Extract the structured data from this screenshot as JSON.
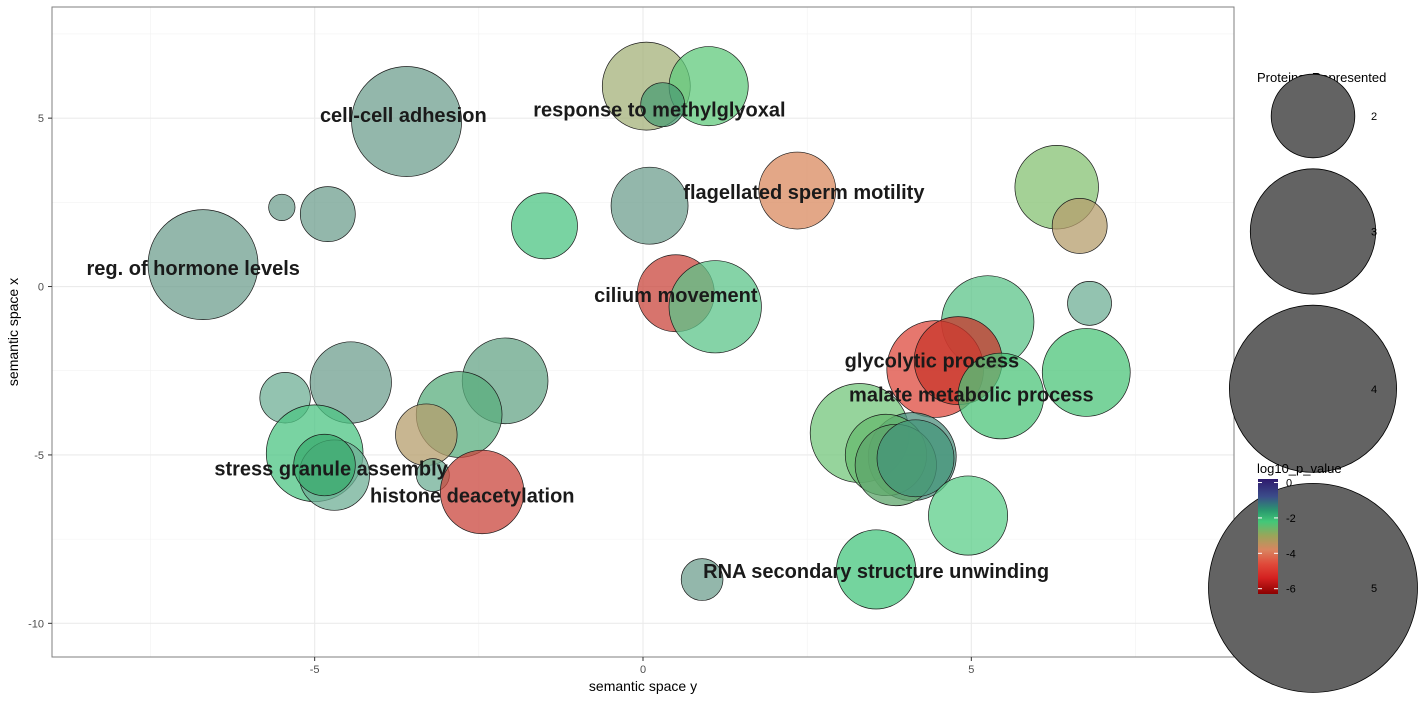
{
  "chart_data": {
    "type": "scatter",
    "subtype": "bubble",
    "xlabel": "semantic space y",
    "ylabel": "semantic space x",
    "xlim": [
      -9,
      9
    ],
    "ylim": [
      -11,
      8.3
    ],
    "x_ticks": [
      -5,
      0,
      5
    ],
    "y_ticks": [
      5,
      0,
      -5,
      -10
    ],
    "x_tick_labels": [
      "-5",
      "0",
      "5"
    ],
    "y_tick_labels": [
      "5",
      "0",
      "-5",
      "-10"
    ],
    "grid": true,
    "size_legend": {
      "title": "Proteins_Represented",
      "entries": [
        {
          "label": "2",
          "value": 2
        },
        {
          "label": "3",
          "value": 3
        },
        {
          "label": "4",
          "value": 4
        },
        {
          "label": "5",
          "value": 5
        }
      ]
    },
    "color_legend": {
      "title": "log10_p_value",
      "ticks": [
        0,
        -2,
        -4,
        -6
      ],
      "tick_labels": [
        "0",
        "-2",
        "-4",
        "-6"
      ],
      "range": [
        -6.3,
        0.2
      ],
      "gradient": [
        {
          "value": 0.2,
          "color": "#2e1a6e"
        },
        {
          "value": -0.8,
          "color": "#3b4d8a"
        },
        {
          "value": -1.6,
          "color": "#2a9a6e"
        },
        {
          "value": -2.2,
          "color": "#42c878"
        },
        {
          "value": -3.0,
          "color": "#9aa55a"
        },
        {
          "value": -3.8,
          "color": "#d98560"
        },
        {
          "value": -4.6,
          "color": "#e04a3a"
        },
        {
          "value": -5.4,
          "color": "#d42020"
        },
        {
          "value": -6.3,
          "color": "#8b0000"
        }
      ]
    },
    "bubbles": [
      {
        "x": -3.6,
        "y": 4.9,
        "size": 5.0,
        "color": "#6f9f8f"
      },
      {
        "x": -6.7,
        "y": 0.65,
        "size": 5.0,
        "color": "#6f9f8f"
      },
      {
        "x": -5.5,
        "y": 2.35,
        "size": 1.2,
        "color": "#6f9f8f"
      },
      {
        "x": -4.8,
        "y": 2.15,
        "size": 2.5,
        "color": "#6f9f8f"
      },
      {
        "x": -1.5,
        "y": 1.8,
        "size": 3.0,
        "color": "#4cc483"
      },
      {
        "x": 0.1,
        "y": 2.4,
        "size": 3.5,
        "color": "#6f9f8f"
      },
      {
        "x": 0.05,
        "y": 5.95,
        "size": 4.0,
        "color": "#a4b27a"
      },
      {
        "x": 1.0,
        "y": 5.95,
        "size": 3.6,
        "color": "#60c97c"
      },
      {
        "x": 0.3,
        "y": 5.4,
        "size": 2.0,
        "color": "#4b9c73"
      },
      {
        "x": 2.35,
        "y": 2.85,
        "size": 3.5,
        "color": "#d98a5f"
      },
      {
        "x": 6.3,
        "y": 2.95,
        "size": 3.8,
        "color": "#85c173"
      },
      {
        "x": 6.65,
        "y": 1.8,
        "size": 2.5,
        "color": "#b69e6c"
      },
      {
        "x": 6.8,
        "y": -0.5,
        "size": 2.0,
        "color": "#6faf95"
      },
      {
        "x": 0.5,
        "y": -0.2,
        "size": 3.5,
        "color": "#c9463c"
      },
      {
        "x": 1.1,
        "y": -0.6,
        "size": 4.2,
        "color": "#5cc48a"
      },
      {
        "x": 5.25,
        "y": -1.05,
        "size": 4.2,
        "color": "#5cc48a"
      },
      {
        "x": 4.45,
        "y": -2.45,
        "size": 4.4,
        "color": "#de4a3e"
      },
      {
        "x": 4.8,
        "y": -2.2,
        "size": 4.0,
        "color": "#c8352b"
      },
      {
        "x": 5.45,
        "y": -3.25,
        "size": 3.9,
        "color": "#4cc479"
      },
      {
        "x": 6.75,
        "y": -2.55,
        "size": 4.0,
        "color": "#4cc479"
      },
      {
        "x": 3.3,
        "y": -4.35,
        "size": 4.5,
        "color": "#73c67b"
      },
      {
        "x": 4.1,
        "y": -5.05,
        "size": 4.0,
        "color": "#4f8f7e"
      },
      {
        "x": 3.7,
        "y": -5.0,
        "size": 3.7,
        "color": "#66b96e"
      },
      {
        "x": 3.85,
        "y": -5.3,
        "size": 3.7,
        "color": "#5da56b"
      },
      {
        "x": 4.15,
        "y": -5.1,
        "size": 3.5,
        "color": "#44957a"
      },
      {
        "x": 4.95,
        "y": -6.8,
        "size": 3.6,
        "color": "#5cce8a"
      },
      {
        "x": 3.55,
        "y": -8.4,
        "size": 3.6,
        "color": "#46c67e"
      },
      {
        "x": 0.9,
        "y": -8.7,
        "size": 1.9,
        "color": "#6f9f8f"
      },
      {
        "x": -5.45,
        "y": -3.3,
        "size": 2.3,
        "color": "#6faf95"
      },
      {
        "x": -4.45,
        "y": -2.85,
        "size": 3.7,
        "color": "#6f9f8f"
      },
      {
        "x": -2.1,
        "y": -2.8,
        "size": 3.9,
        "color": "#66a487"
      },
      {
        "x": -2.8,
        "y": -3.8,
        "size": 3.9,
        "color": "#5aae7e"
      },
      {
        "x": -3.3,
        "y": -4.4,
        "size": 2.8,
        "color": "#b69e6c"
      },
      {
        "x": -5.0,
        "y": -4.95,
        "size": 4.4,
        "color": "#4cc483"
      },
      {
        "x": -4.7,
        "y": -5.6,
        "size": 3.2,
        "color": "#6faf95"
      },
      {
        "x": -4.85,
        "y": -5.3,
        "size": 2.8,
        "color": "#3aab6e"
      },
      {
        "x": -3.2,
        "y": -5.6,
        "size": 1.5,
        "color": "#6faf95"
      },
      {
        "x": -2.45,
        "y": -6.1,
        "size": 3.8,
        "color": "#c9463c"
      }
    ],
    "labels": [
      {
        "text": "cell-cell adhesion",
        "x": -3.65,
        "y": 5.1
      },
      {
        "text": "response to methylglyoxal",
        "x": 0.25,
        "y": 5.25
      },
      {
        "text": "flagellated sperm motility",
        "x": 2.45,
        "y": 2.8
      },
      {
        "text": "reg. of hormone levels",
        "x": -6.85,
        "y": 0.55
      },
      {
        "text": "cilium movement",
        "x": 0.5,
        "y": -0.25
      },
      {
        "text": "glycolytic process",
        "x": 4.4,
        "y": -2.2
      },
      {
        "text": "malate metabolic process",
        "x": 5.0,
        "y": -3.2
      },
      {
        "text": "stress granule assembly",
        "x": -4.75,
        "y": -5.4
      },
      {
        "text": "histone deacetylation",
        "x": -2.6,
        "y": -6.2
      },
      {
        "text": "RNA secondary structure unwinding",
        "x": 3.55,
        "y": -8.45
      }
    ]
  }
}
